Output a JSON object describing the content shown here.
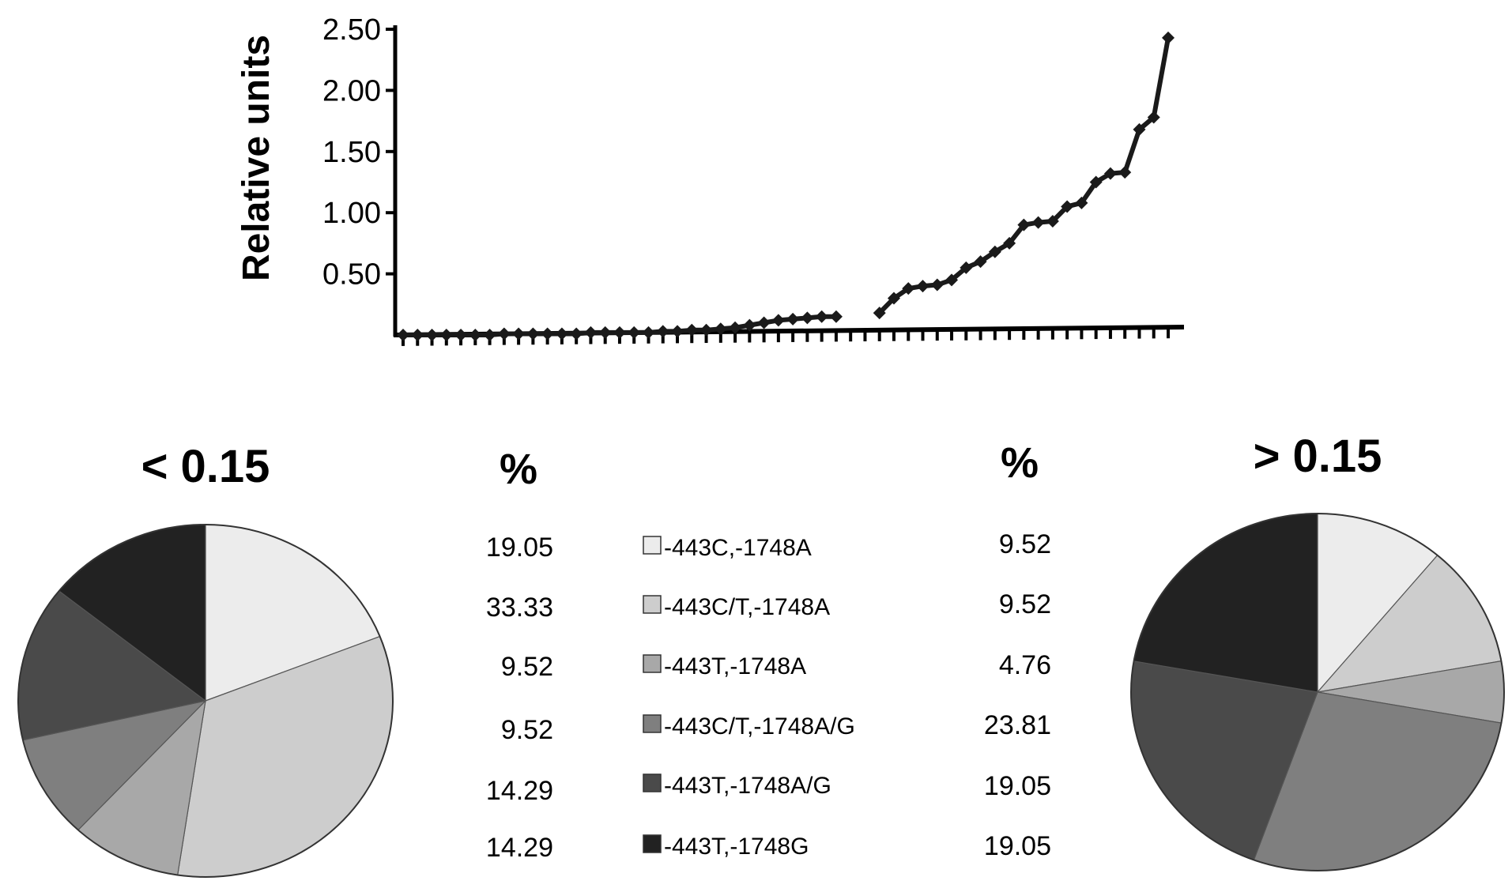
{
  "chart_data": [
    {
      "type": "line",
      "ylabel": "Relative units",
      "yticks": [
        "2.50",
        "2.00",
        "1.50",
        "1.00",
        "0.50"
      ],
      "ylim": [
        0,
        2.5
      ],
      "line_color": "#1a1a1a",
      "series": [
        {
          "values": [
            0.0,
            0.0,
            0.0,
            0.0,
            0.0,
            0.0,
            0.0,
            0.01,
            0.01,
            0.01,
            0.01,
            0.01,
            0.01,
            0.02,
            0.02,
            0.02,
            0.02,
            0.02,
            0.03,
            0.03,
            0.04,
            0.04,
            0.05,
            0.06,
            0.08,
            0.1,
            0.12,
            0.13,
            0.14,
            0.15,
            0.15,
            null,
            null,
            0.18,
            0.3,
            0.38,
            0.4,
            0.41,
            0.45,
            0.55,
            0.6,
            0.68,
            0.75,
            0.9,
            0.92,
            0.93,
            1.05,
            1.08,
            1.25,
            1.32,
            1.33,
            1.68,
            1.78,
            2.43
          ]
        }
      ]
    },
    {
      "type": "pie",
      "title": "< 0.15",
      "header": "%",
      "labels": [
        "-443C,-1748A",
        "-443C/T,-1748A",
        "-443T,-1748A",
        "-443C/T,-1748A/G",
        "-443T,-1748A/G",
        "-443T,-1748G"
      ],
      "values": [
        19.05,
        33.33,
        9.52,
        9.52,
        14.29,
        14.29
      ],
      "value_labels": [
        "19.05",
        "33.33",
        "9.52",
        "9.52",
        "14.29",
        "14.29"
      ],
      "colors": [
        "#ececec",
        "#cdcdcd",
        "#a8a8a8",
        "#7f7f7f",
        "#4a4a4a",
        "#222222"
      ]
    },
    {
      "type": "pie",
      "title": "> 0.15",
      "header": "%",
      "labels": [
        "-443C,-1748A",
        "-443C/T,-1748A",
        "-443T,-1748A",
        "-443C/T,-1748A/G",
        "-443T,-1748A/G",
        "-443T,-1748G"
      ],
      "values": [
        9.52,
        9.52,
        4.76,
        23.81,
        19.05,
        19.05
      ],
      "value_labels": [
        "9.52",
        "9.52",
        "4.76",
        "23.81",
        "19.05",
        "19.05"
      ],
      "colors": [
        "#ececec",
        "#cdcdcd",
        "#a8a8a8",
        "#7f7f7f",
        "#4a4a4a",
        "#222222"
      ]
    }
  ],
  "legend": {
    "labels": [
      "-443C,-1748A",
      "-443C/T,-1748A",
      "-443T,-1748A",
      "-443C/T,-1748A/G",
      "-443T,-1748A/G",
      "-443T,-1748G"
    ],
    "colors": [
      "#ececec",
      "#cdcdcd",
      "#a8a8a8",
      "#7f7f7f",
      "#4a4a4a",
      "#222222"
    ]
  }
}
